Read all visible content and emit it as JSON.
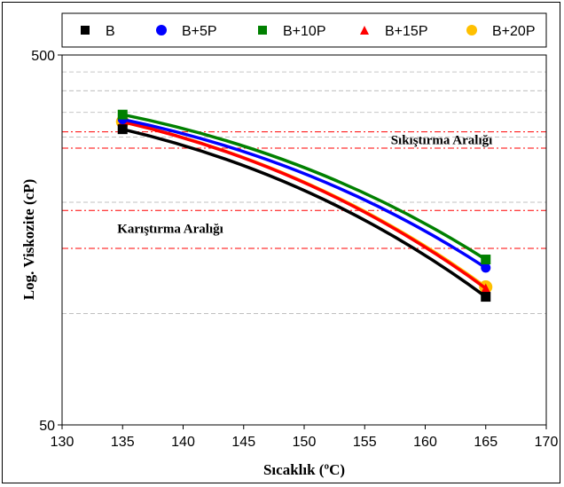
{
  "chart_data": {
    "type": "line",
    "xlabel": "Sıcaklık (ºC)",
    "ylabel": "Log. Viskozite (cP)",
    "xlim": [
      130,
      170
    ],
    "ylim": [
      50,
      500
    ],
    "y_scale": "log",
    "x_ticks": [
      "130",
      "135",
      "140",
      "145",
      "150",
      "155",
      "160",
      "165",
      "170"
    ],
    "y_ticks": [
      "50",
      "500"
    ],
    "grid": "dashed horizontal minor lines",
    "legend_position": "top",
    "x": [
      135,
      165
    ],
    "series": [
      {
        "name": "B",
        "values": [
          315,
          111
        ],
        "color": "#000000",
        "marker": "square"
      },
      {
        "name": "B+5P",
        "values": [
          335,
          133
        ],
        "color": "#0000ff",
        "marker": "circle"
      },
      {
        "name": "B+10P",
        "values": [
          345,
          140
        ],
        "color": "#008000",
        "marker": "square"
      },
      {
        "name": "B+15P",
        "values": [
          330,
          117
        ],
        "color": "#ff0000",
        "marker": "triangle"
      },
      {
        "name": "B+20P",
        "values": [
          330,
          118
        ],
        "color": "#ffc000",
        "marker": "circle"
      }
    ],
    "ranges": [
      {
        "label": "Sıkıştırma Aralığı",
        "from": 280,
        "to": 310,
        "color": "#ff0000"
      },
      {
        "label": "Karıştırma Aralığı",
        "from": 150,
        "to": 190,
        "color": "#ff0000"
      }
    ]
  }
}
